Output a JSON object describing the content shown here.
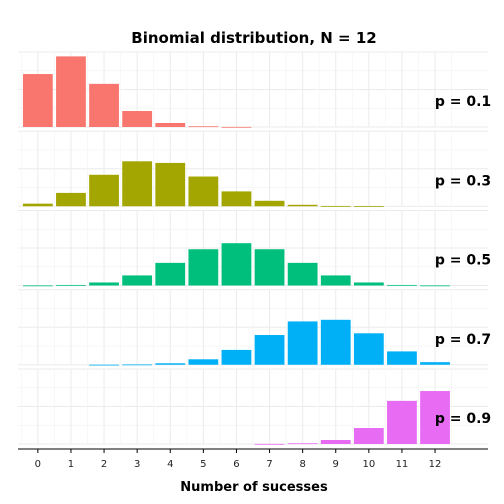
{
  "chart_data": {
    "type": "bar",
    "title": "Binomial distribution, N = 12",
    "xlabel": "Number of sucesses",
    "ylabel": "",
    "categories": [
      "0",
      "1",
      "2",
      "3",
      "4",
      "5",
      "6",
      "7",
      "8",
      "9",
      "10",
      "11",
      "12"
    ],
    "x_ticks": [
      "0",
      "1",
      "2",
      "3",
      "4",
      "5",
      "6",
      "7",
      "8",
      "9",
      "10",
      "11",
      "12"
    ],
    "xlim": [
      -0.6,
      13.6
    ],
    "facet_ylim": [
      0,
      0.4
    ],
    "grid": true,
    "facet_label_position": "right",
    "series": [
      {
        "label": "p = 0.1",
        "color": "#F8766D",
        "values": [
          0.2824,
          0.3766,
          0.2301,
          0.0852,
          0.0213,
          0.0038,
          0.0005,
          0,
          0,
          0,
          0,
          0,
          0
        ]
      },
      {
        "label": "p = 0.3",
        "color": "#A3A500",
        "values": [
          0.0138,
          0.0712,
          0.1678,
          0.2397,
          0.2311,
          0.1585,
          0.0792,
          0.0291,
          0.0078,
          0.0015,
          0.0002,
          0,
          0
        ]
      },
      {
        "label": "p = 0.5",
        "color": "#00BF7D",
        "values": [
          0.0002,
          0.0029,
          0.0161,
          0.0537,
          0.1208,
          0.1934,
          0.2256,
          0.1934,
          0.1208,
          0.0537,
          0.0161,
          0.0029,
          0.0002
        ]
      },
      {
        "label": "p = 0.7",
        "color": "#00B0F6",
        "values": [
          0,
          0,
          0.0002,
          0.0015,
          0.0078,
          0.0291,
          0.0792,
          0.1585,
          0.2311,
          0.2397,
          0.1678,
          0.0712,
          0.0138
        ]
      },
      {
        "label": "p = 0.9",
        "color": "#E76BF3",
        "values": [
          0,
          0,
          0,
          0,
          0,
          0,
          0,
          0.0005,
          0.0038,
          0.0213,
          0.0852,
          0.2301,
          0.2824
        ]
      }
    ]
  }
}
